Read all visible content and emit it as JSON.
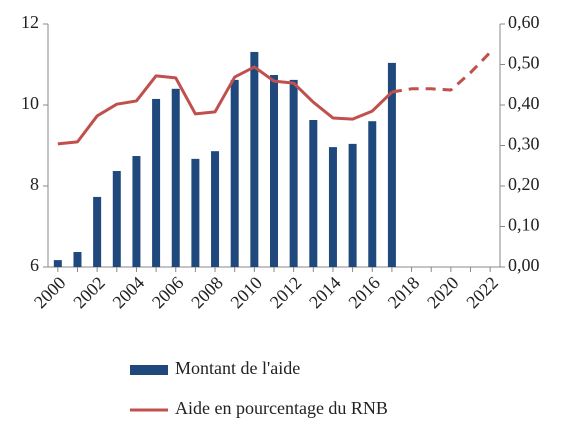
{
  "chart_data": {
    "type": "bar_line",
    "categories": [
      "2000",
      null,
      "2002",
      null,
      "2004",
      null,
      "2006",
      null,
      "2008",
      null,
      "2010",
      null,
      "2012",
      null,
      "2014",
      null,
      "2016",
      null,
      "2018",
      null,
      "2020",
      null,
      "2022"
    ],
    "series": [
      {
        "name": "Montant de l'aide",
        "type": "bar",
        "color": "#1f497d",
        "values": [
          6.17,
          6.37,
          7.73,
          8.37,
          8.74,
          10.15,
          10.4,
          8.67,
          8.86,
          10.62,
          11.31,
          10.74,
          10.62,
          9.63,
          8.96,
          9.04,
          9.6,
          11.04,
          null,
          null,
          null,
          null,
          null
        ]
      },
      {
        "name": "Aide en pourcentage du RNB",
        "type": "line",
        "axis": "y2",
        "color": "#c0504d",
        "dashed_from": 17,
        "values": [
          0.304,
          0.309,
          0.373,
          0.402,
          0.41,
          0.472,
          0.467,
          0.378,
          0.383,
          0.469,
          0.494,
          0.459,
          0.454,
          0.407,
          0.368,
          0.365,
          0.385,
          0.432,
          0.44,
          0.44,
          0.437,
          0.48,
          0.53
        ]
      }
    ],
    "ylim": [
      6,
      12
    ],
    "yticks": [
      6,
      8,
      10,
      12
    ],
    "y2lim": [
      0,
      0.6
    ],
    "y2ticks": [
      {
        "value": 0,
        "label": "0,00"
      },
      {
        "value": 0.1,
        "label": "0,10"
      },
      {
        "value": 0.2,
        "label": "0,20"
      },
      {
        "value": 0.3,
        "label": "0,30"
      },
      {
        "value": 0.4,
        "label": "0,40"
      },
      {
        "value": 0.5,
        "label": "0,50"
      },
      {
        "value": 0.6,
        "label": "0,60"
      }
    ],
    "legend": "bottom"
  }
}
